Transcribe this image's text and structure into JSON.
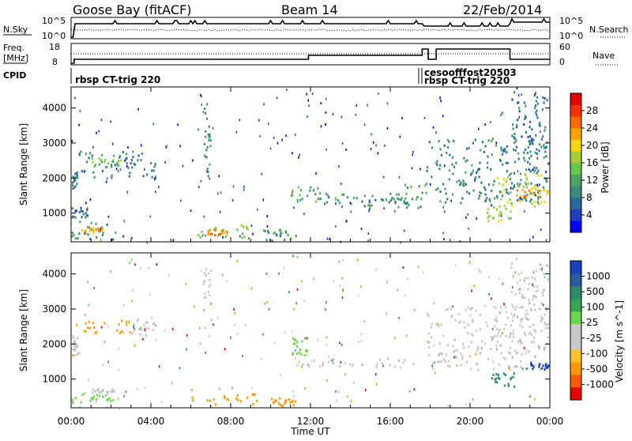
{
  "header": {
    "station": "Goose Bay (fitACF)",
    "beam": "Beam 14",
    "date": "22/Feb/2014"
  },
  "strips": {
    "nsky": {
      "label": "N.Sky",
      "ticks": [
        "10^5",
        "10^0"
      ],
      "right_label": "N.Search",
      "right_ticks": [
        "10^5",
        "10^0"
      ]
    },
    "freq": {
      "label_line1": "Freq.",
      "label_line2": "[MHz]",
      "ticks": [
        "18",
        "8"
      ],
      "right_label": "Nave",
      "right_ticks": [
        "60",
        "0"
      ]
    },
    "cpid": {
      "label": "CPID",
      "left_mode": "rbsp CT-trig 220",
      "right_mode_top": "cesoofffost20503",
      "right_mode_bottom": "rbsp CT-trig 220"
    }
  },
  "colors": {
    "power_scale": [
      "#0000ff",
      "#1e3fbf",
      "#2a6a9a",
      "#3a8a7a",
      "#4ea65e",
      "#66c84a",
      "#aacc33",
      "#f5d900",
      "#ffa500",
      "#ff6a00",
      "#ff3000",
      "#e80000"
    ],
    "velocity_scale": [
      "#e60000",
      "#ff5a00",
      "#ff9a00",
      "#ffc22a",
      "#c8c8c8",
      "#c8c8c8",
      "#6ad64a",
      "#33a650",
      "#2d8a6a",
      "#2a5aa0",
      "#1840c0"
    ],
    "accent": "#000000"
  },
  "chart_data": [
    {
      "type": "heatmap",
      "title": "",
      "xlabel": "",
      "ylabel": "Slant Range [km]",
      "xlim": [
        "00:00",
        "24:00"
      ],
      "ylim": [
        180,
        4600
      ],
      "yticks": [
        1000,
        2000,
        3000,
        4000
      ],
      "colorbar_label": "Power [dB]",
      "colorbar_ticks": [
        4,
        8,
        12,
        16,
        20,
        24,
        28
      ],
      "colorbar_range": [
        0,
        30
      ],
      "regions": [
        {
          "t0": 0.0,
          "t1": 0.3,
          "r0": 1700,
          "r1": 2300,
          "value": 9
        },
        {
          "t0": 0.3,
          "t1": 4.2,
          "r0": 2000,
          "r1": 2800,
          "value": 8
        },
        {
          "t0": 1.0,
          "t1": 2.5,
          "r0": 2350,
          "r1": 2600,
          "value": 13
        },
        {
          "t0": 0.0,
          "t1": 2.2,
          "r0": 250,
          "r1": 800,
          "value": 10
        },
        {
          "t0": 0.5,
          "t1": 1.6,
          "r0": 450,
          "r1": 620,
          "value": 22
        },
        {
          "t0": 0.0,
          "t1": 0.8,
          "r0": 900,
          "r1": 1200,
          "value": 7
        },
        {
          "t0": 6.2,
          "t1": 9.0,
          "r0": 300,
          "r1": 700,
          "value": 14
        },
        {
          "t0": 6.8,
          "t1": 7.8,
          "r0": 380,
          "r1": 560,
          "value": 22
        },
        {
          "t0": 9.6,
          "t1": 11.2,
          "r0": 250,
          "r1": 550,
          "value": 10
        },
        {
          "t0": 6.6,
          "t1": 7.0,
          "r0": 2200,
          "r1": 4200,
          "value": 10
        },
        {
          "t0": 11.0,
          "t1": 17.6,
          "r0": 1150,
          "r1": 1450,
          "value": 8
        },
        {
          "t0": 11.0,
          "t1": 12.4,
          "r0": 1350,
          "r1": 1800,
          "value": 12
        },
        {
          "t0": 12.4,
          "t1": 16.5,
          "r0": 1400,
          "r1": 1600,
          "value": 10
        },
        {
          "t0": 16.5,
          "t1": 17.8,
          "r0": 1300,
          "r1": 2000,
          "value": 12
        },
        {
          "t0": 17.8,
          "t1": 23.9,
          "r0": 1300,
          "r1": 3200,
          "value": 8
        },
        {
          "t0": 21.2,
          "t1": 23.9,
          "r0": 1200,
          "r1": 2200,
          "value": 17
        },
        {
          "t0": 22.3,
          "t1": 23.9,
          "r0": 1400,
          "r1": 1900,
          "value": 22
        },
        {
          "t0": 20.8,
          "t1": 22.0,
          "r0": 800,
          "r1": 1200,
          "value": 16
        },
        {
          "t0": 22.0,
          "t1": 23.9,
          "r0": 2200,
          "r1": 4500,
          "value": 7
        }
      ]
    },
    {
      "type": "heatmap",
      "title": "",
      "xlabel": "Time UT",
      "ylabel": "Slant Range [km]",
      "xlim": [
        "00:00",
        "24:00"
      ],
      "xticks": [
        "00:00",
        "04:00",
        "08:00",
        "12:00",
        "16:00",
        "20:00",
        "00:00"
      ],
      "ylim": [
        180,
        4600
      ],
      "yticks": [
        1000,
        2000,
        3000,
        4000
      ],
      "colorbar_label": "Velocity [m s^-1]",
      "colorbar_ticks": [
        "1000",
        "500",
        "100",
        "25",
        "-25",
        "-100",
        "-500",
        "-1000"
      ],
      "regions": [
        {
          "t0": 0.0,
          "t1": 0.4,
          "r0": 1700,
          "r1": 2300,
          "value": "25"
        },
        {
          "t0": 0.4,
          "t1": 3.0,
          "r0": 2350,
          "r1": 2700,
          "value": "-100"
        },
        {
          "t0": 3.0,
          "t1": 4.2,
          "r0": 2300,
          "r1": 2800,
          "value": "25"
        },
        {
          "t0": 0.0,
          "t1": 2.2,
          "r0": 350,
          "r1": 600,
          "value": "100"
        },
        {
          "t0": 1.0,
          "t1": 2.2,
          "r0": 600,
          "r1": 750,
          "value": "25"
        },
        {
          "t0": 6.0,
          "t1": 9.5,
          "r0": 300,
          "r1": 600,
          "value": "-100"
        },
        {
          "t0": 10.0,
          "t1": 11.2,
          "r0": 250,
          "r1": 480,
          "value": "-100"
        },
        {
          "t0": 11.0,
          "t1": 11.8,
          "r0": 1700,
          "r1": 2200,
          "value": "100"
        },
        {
          "t0": 11.0,
          "t1": 17.5,
          "r0": 1350,
          "r1": 1600,
          "value": "25"
        },
        {
          "t0": 17.8,
          "t1": 23.9,
          "r0": 1300,
          "r1": 3200,
          "value": "25"
        },
        {
          "t0": 21.0,
          "t1": 22.2,
          "r0": 800,
          "r1": 1200,
          "value": "500"
        },
        {
          "t0": 23.0,
          "t1": 23.9,
          "r0": 1300,
          "r1": 1500,
          "value": "1000"
        },
        {
          "t0": 22.0,
          "t1": 23.9,
          "r0": 2200,
          "r1": 4500,
          "value": "25"
        },
        {
          "t0": 6.6,
          "t1": 7.0,
          "r0": 2200,
          "r1": 4200,
          "value": "25"
        }
      ]
    }
  ]
}
